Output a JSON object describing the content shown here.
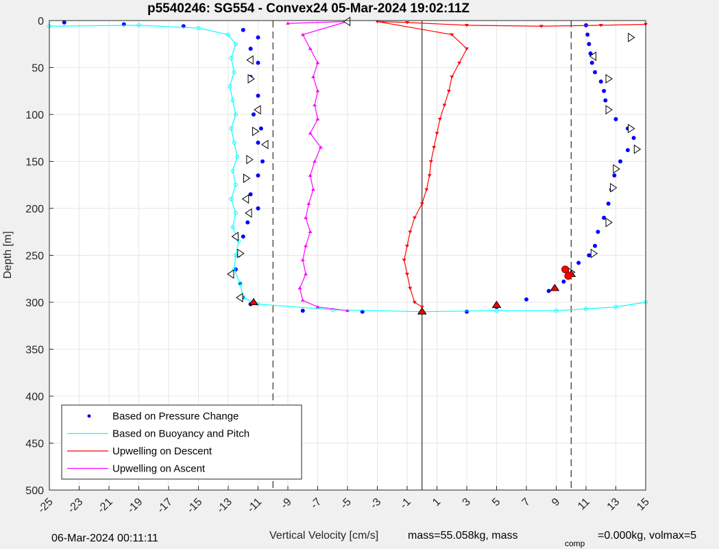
{
  "chart_data": {
    "type": "scatter",
    "title": "p5540246: SG554 - Convex24 05-Mar-2024 19:02:11Z",
    "xlabel": "Vertical Velocity [cm/s]",
    "ylabel": "Depth [m]",
    "xlim": [
      -25,
      15
    ],
    "ylim": [
      0,
      500
    ],
    "y_reversed": true,
    "grid": true,
    "x_ticks": [
      -25,
      -23,
      -21,
      -19,
      -17,
      -15,
      -13,
      -11,
      -9,
      -7,
      -5,
      -3,
      -1,
      1,
      3,
      5,
      7,
      9,
      11,
      13,
      15
    ],
    "x_tick_labels": [
      "-25",
      "-23",
      "-21",
      "-19",
      "-17",
      "-15",
      "-13",
      "-11",
      "-9",
      "-7",
      "-5",
      "-3",
      "-1",
      "1",
      "3",
      "5",
      "7",
      "9",
      "11",
      "13",
      "15"
    ],
    "y_ticks": [
      0,
      50,
      100,
      150,
      200,
      250,
      300,
      350,
      400,
      450,
      500
    ],
    "y_tick_labels": [
      "0",
      "50",
      "100",
      "150",
      "200",
      "250",
      "300",
      "350",
      "400",
      "450",
      "500"
    ],
    "reference_lines": {
      "solid_x": [
        0
      ],
      "dashed_x": [
        -10,
        10
      ]
    },
    "legend": {
      "location": "bottom-left",
      "entries": [
        {
          "label": "Based on Pressure Change",
          "color": "#0000ff",
          "style": "dots"
        },
        {
          "label": "Based on Buoyancy and Pitch",
          "color": "#00ffff",
          "style": "line"
        },
        {
          "label": "Upwelling on Descent",
          "color": "#ff0000",
          "style": "line"
        },
        {
          "label": "Upwelling on Ascent",
          "color": "#ff00ff",
          "style": "line"
        }
      ]
    },
    "series": [
      {
        "name": "Based on Pressure Change",
        "color": "#0000ff",
        "marker": "dot",
        "points": [
          [
            -24,
            2
          ],
          [
            -20,
            4
          ],
          [
            -16,
            6
          ],
          [
            -12,
            10
          ],
          [
            -11,
            18
          ],
          [
            -11.5,
            30
          ],
          [
            -11,
            45
          ],
          [
            -11.5,
            60
          ],
          [
            -11,
            80
          ],
          [
            -11.3,
            100
          ],
          [
            -10.8,
            115
          ],
          [
            -11,
            130
          ],
          [
            -10.7,
            150
          ],
          [
            -11,
            165
          ],
          [
            -11.5,
            185
          ],
          [
            -11,
            200
          ],
          [
            -11.7,
            215
          ],
          [
            -12,
            230
          ],
          [
            -12.3,
            250
          ],
          [
            -12.5,
            265
          ],
          [
            -12.2,
            280
          ],
          [
            -12,
            295
          ],
          [
            -11.5,
            302
          ],
          [
            -8,
            309
          ],
          [
            -4,
            310
          ],
          [
            0,
            310
          ],
          [
            3,
            310
          ],
          [
            5,
            305
          ],
          [
            7,
            297
          ],
          [
            8.5,
            288
          ],
          [
            9.5,
            278
          ],
          [
            10,
            268
          ],
          [
            10.5,
            258
          ],
          [
            11.2,
            250
          ],
          [
            11.6,
            240
          ],
          [
            11.8,
            225
          ],
          [
            12.2,
            210
          ],
          [
            12.5,
            195
          ],
          [
            12.7,
            180
          ],
          [
            12.9,
            165
          ],
          [
            13.3,
            150
          ],
          [
            13.8,
            138
          ],
          [
            14.2,
            125
          ],
          [
            13.8,
            115
          ],
          [
            13,
            105
          ],
          [
            12.5,
            95
          ],
          [
            12.3,
            85
          ],
          [
            12.2,
            75
          ],
          [
            12,
            65
          ],
          [
            11.6,
            55
          ],
          [
            11.4,
            45
          ],
          [
            11.3,
            35
          ],
          [
            11.2,
            25
          ],
          [
            11.1,
            15
          ],
          [
            11,
            5
          ]
        ]
      },
      {
        "name": "Based on Buoyancy and Pitch",
        "color": "#00ffff",
        "marker": "circle-line",
        "points": [
          [
            -25,
            6
          ],
          [
            -19,
            5
          ],
          [
            -15,
            8
          ],
          [
            -13,
            15
          ],
          [
            -12.5,
            25
          ],
          [
            -12.8,
            40
          ],
          [
            -12.6,
            55
          ],
          [
            -12.9,
            70
          ],
          [
            -12.7,
            85
          ],
          [
            -12.5,
            100
          ],
          [
            -12.8,
            115
          ],
          [
            -12.6,
            130
          ],
          [
            -12.4,
            145
          ],
          [
            -12.7,
            160
          ],
          [
            -12.5,
            175
          ],
          [
            -12.8,
            190
          ],
          [
            -12.5,
            205
          ],
          [
            -12.7,
            220
          ],
          [
            -12.3,
            235
          ],
          [
            -12.5,
            250
          ],
          [
            -12.6,
            265
          ],
          [
            -12.2,
            280
          ],
          [
            -12,
            295
          ],
          [
            -11,
            302
          ],
          [
            -6,
            308
          ],
          [
            0,
            310
          ],
          [
            5,
            309
          ],
          [
            9,
            309
          ],
          [
            11,
            307
          ],
          [
            13,
            305
          ],
          [
            15,
            300
          ]
        ]
      },
      {
        "name": "Upwelling on Descent",
        "color": "#ff0000",
        "marker": "triangle-down-line",
        "points": [
          [
            15,
            4
          ],
          [
            12,
            5
          ],
          [
            8,
            6
          ],
          [
            3,
            5
          ],
          [
            -1,
            2
          ],
          [
            -3,
            1
          ],
          [
            2,
            15
          ],
          [
            3,
            30
          ],
          [
            2.5,
            45
          ],
          [
            2,
            60
          ],
          [
            1.8,
            75
          ],
          [
            1.5,
            90
          ],
          [
            1.2,
            105
          ],
          [
            1,
            120
          ],
          [
            0.8,
            135
          ],
          [
            0.6,
            150
          ],
          [
            0.5,
            165
          ],
          [
            0.3,
            180
          ],
          [
            0,
            195
          ],
          [
            -0.5,
            210
          ],
          [
            -0.8,
            225
          ],
          [
            -1,
            240
          ],
          [
            -1.2,
            255
          ],
          [
            -1,
            270
          ],
          [
            -0.8,
            285
          ],
          [
            -0.5,
            300
          ],
          [
            0,
            305
          ]
        ]
      },
      {
        "name": "Upwelling on Ascent",
        "color": "#ff00ff",
        "marker": "triangle-up-line",
        "points": [
          [
            -9,
            3
          ],
          [
            -5,
            1
          ],
          [
            -8,
            15
          ],
          [
            -7.5,
            30
          ],
          [
            -7,
            45
          ],
          [
            -7.3,
            60
          ],
          [
            -7,
            75
          ],
          [
            -7.2,
            90
          ],
          [
            -7,
            105
          ],
          [
            -7.5,
            120
          ],
          [
            -6.8,
            135
          ],
          [
            -7.2,
            150
          ],
          [
            -7.5,
            165
          ],
          [
            -7.3,
            180
          ],
          [
            -7.6,
            195
          ],
          [
            -7.8,
            210
          ],
          [
            -7.5,
            225
          ],
          [
            -7.8,
            240
          ],
          [
            -8,
            255
          ],
          [
            -7.8,
            270
          ],
          [
            -8.2,
            285
          ],
          [
            -8,
            298
          ],
          [
            -7,
            305
          ],
          [
            -5,
            309
          ]
        ]
      }
    ],
    "markers": {
      "open_triangles_right": [
        [
          14,
          18
        ],
        [
          12.5,
          62
        ],
        [
          12.5,
          95
        ],
        [
          14,
          115
        ],
        [
          14.4,
          137
        ],
        [
          13,
          158
        ],
        [
          12.8,
          178
        ],
        [
          12.5,
          215
        ],
        [
          11.5,
          248
        ],
        [
          10,
          268
        ],
        [
          -11.5,
          62
        ],
        [
          -11.2,
          118
        ],
        [
          -11.6,
          148
        ],
        [
          -11.8,
          168
        ],
        [
          -12.2,
          248
        ]
      ],
      "open_triangles_left": [
        [
          -5,
          1
        ],
        [
          -11.5,
          42
        ],
        [
          -11,
          95
        ],
        [
          -10.5,
          132
        ],
        [
          -11.8,
          190
        ],
        [
          -11.6,
          205
        ],
        [
          -12.5,
          230
        ],
        [
          -12.8,
          270
        ],
        [
          -12.2,
          295
        ],
        [
          11.5,
          38
        ]
      ],
      "red_triangles": [
        [
          -11.3,
          300
        ],
        [
          5,
          303
        ],
        [
          8.9,
          285
        ],
        [
          10,
          270
        ],
        [
          0,
          310
        ]
      ],
      "red_circles": [
        [
          9.6,
          265
        ],
        [
          9.8,
          272
        ]
      ]
    }
  },
  "footer": {
    "datetime": "06-Mar-2024 00:11:11",
    "xlabel": "Vertical Velocity [cm/s]",
    "mass_text": "mass=55.058kg, mass",
    "comp_sub": "comp",
    "mass_comp_text": "=0.000kg, volmax=5"
  }
}
